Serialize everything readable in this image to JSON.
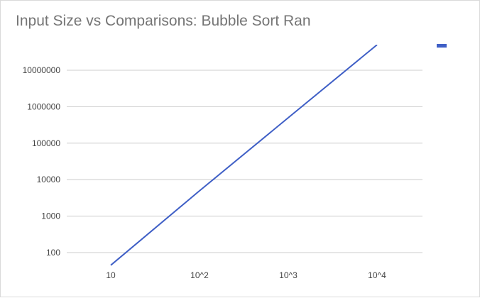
{
  "chart_data": {
    "type": "line",
    "title": "Input Size vs Comparisons: Bubble Sort Ran",
    "xlabel": "",
    "ylabel": "",
    "x_scale": "log",
    "y_scale": "log",
    "xlim": [
      10,
      10000
    ],
    "ylim": [
      100,
      10000000
    ],
    "x_ticks": [
      {
        "value": 10,
        "label": "10"
      },
      {
        "value": 100,
        "label": "10^2"
      },
      {
        "value": 1000,
        "label": "10^3"
      },
      {
        "value": 10000,
        "label": "10^4"
      }
    ],
    "y_ticks": [
      {
        "value": 100,
        "label": "100"
      },
      {
        "value": 1000,
        "label": "1000"
      },
      {
        "value": 10000,
        "label": "10000"
      },
      {
        "value": 100000,
        "label": "100000"
      },
      {
        "value": 1000000,
        "label": "1000000"
      },
      {
        "value": 10000000,
        "label": "10000000"
      }
    ],
    "grid": true,
    "legend_position": "right",
    "series": [
      {
        "color": "#3f5fc6",
        "x": [
          10,
          100,
          1000,
          10000
        ],
        "y": [
          45,
          4950,
          499500,
          49995000
        ]
      }
    ]
  }
}
